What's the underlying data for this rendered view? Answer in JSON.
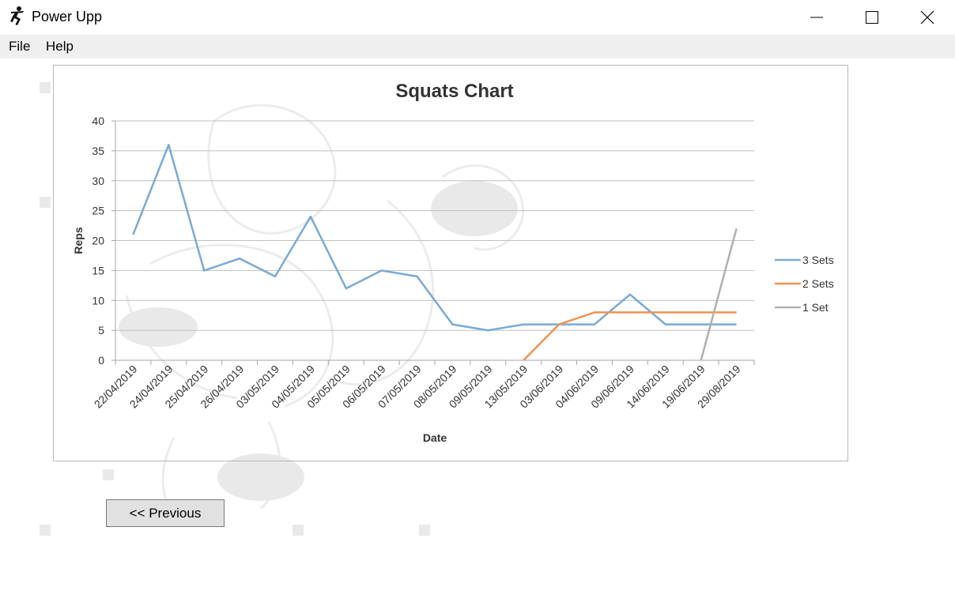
{
  "window": {
    "title": "Power Upp",
    "minimize_icon": "minimize-icon",
    "maximize_icon": "maximize-icon",
    "close_icon": "close-icon"
  },
  "menu": {
    "items": [
      {
        "label": "File"
      },
      {
        "label": "Help"
      }
    ]
  },
  "navigation": {
    "previous_label": "<< Previous"
  },
  "chart_data": {
    "type": "line",
    "title": "Squats Chart",
    "xlabel": "Date",
    "ylabel": "Reps",
    "ylim": [
      0,
      40
    ],
    "yticks": [
      0,
      5,
      10,
      15,
      20,
      25,
      30,
      35,
      40
    ],
    "grid": true,
    "legend_position": "right",
    "categories": [
      "22/04/2019",
      "24/04/2019",
      "25/04/2019",
      "26/04/2019",
      "03/05/2019",
      "04/05/2019",
      "05/05/2019",
      "06/05/2019",
      "07/05/2019",
      "08/05/2019",
      "09/05/2019",
      "13/05/2019",
      "03/06/2019",
      "04/06/2019",
      "09/06/2019",
      "14/06/2019",
      "19/06/2019",
      "29/08/2019"
    ],
    "series": [
      {
        "name": "3 Sets",
        "color": "#7aaad4",
        "values": [
          21,
          36,
          15,
          17,
          14,
          24,
          12,
          15,
          14,
          6,
          5,
          6,
          6,
          6,
          11,
          6,
          6,
          6
        ]
      },
      {
        "name": "2 Sets",
        "color": "#ed9555",
        "values": [
          null,
          null,
          null,
          null,
          null,
          null,
          null,
          null,
          null,
          null,
          null,
          0,
          6,
          8,
          8,
          8,
          8,
          8
        ]
      },
      {
        "name": "1 Set",
        "color": "#b0b0b0",
        "values": [
          null,
          null,
          null,
          null,
          null,
          null,
          null,
          null,
          null,
          null,
          null,
          null,
          null,
          null,
          null,
          null,
          0,
          22
        ]
      }
    ]
  }
}
